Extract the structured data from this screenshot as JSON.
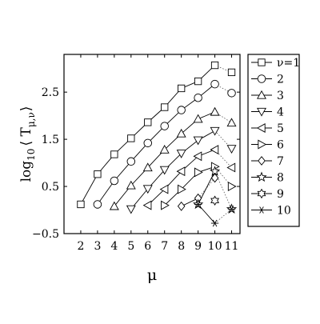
{
  "chart_data": {
    "type": "line",
    "title": "",
    "xlabel": "μ",
    "ylabel_main": "log",
    "ylabel_sub": "10",
    "ylabel_rest": "⟨ T",
    "ylabel_index": "μ,ν",
    "ylabel_close": "⟩",
    "xlim": [
      1,
      11.5
    ],
    "ylim": [
      -0.5,
      3.3
    ],
    "x_ticks": [
      2,
      3,
      4,
      5,
      6,
      7,
      8,
      9,
      10,
      11
    ],
    "x_tick_labels": [
      "2",
      "3",
      "4",
      "5",
      "6",
      "7",
      "8",
      "9",
      "10",
      "11"
    ],
    "y_ticks": [
      -0.5,
      0.5,
      1.5,
      2.5
    ],
    "y_tick_labels": [
      "−0.5",
      "0.5",
      "1.5",
      "2.5"
    ],
    "legend_position": "right",
    "series": [
      {
        "name": "ν=1",
        "marker": "square",
        "x": [
          2,
          3,
          4,
          5,
          6,
          7,
          8,
          9,
          10,
          11
        ],
        "y": [
          0.12,
          0.76,
          1.18,
          1.52,
          1.86,
          2.18,
          2.58,
          2.73,
          3.07,
          2.92
        ]
      },
      {
        "name": "2",
        "marker": "circle",
        "x": [
          3,
          4,
          5,
          6,
          7,
          8,
          9,
          10,
          11
        ],
        "y": [
          0.12,
          0.62,
          1.03,
          1.42,
          1.78,
          2.12,
          2.38,
          2.67,
          2.48
        ]
      },
      {
        "name": "3",
        "marker": "triangle-up",
        "x": [
          4,
          5,
          6,
          7,
          8,
          9,
          10,
          11
        ],
        "y": [
          0.08,
          0.52,
          0.9,
          1.28,
          1.62,
          1.93,
          2.08,
          1.85
        ]
      },
      {
        "name": "4",
        "marker": "triangle-down",
        "x": [
          5,
          6,
          7,
          8,
          9,
          10,
          11
        ],
        "y": [
          0.02,
          0.45,
          0.85,
          1.2,
          1.48,
          1.68,
          1.3
        ]
      },
      {
        "name": "5",
        "marker": "triangle-left",
        "x": [
          6,
          7,
          8,
          9,
          10,
          11
        ],
        "y": [
          0.1,
          0.44,
          0.82,
          1.14,
          1.28,
          0.9
        ]
      },
      {
        "name": "6",
        "marker": "triangle-right",
        "x": [
          7,
          8,
          9,
          10,
          11
        ],
        "y": [
          0.1,
          0.44,
          0.8,
          0.92,
          0.5
        ]
      },
      {
        "name": "7",
        "marker": "diamond",
        "x": [
          8,
          9,
          10
        ],
        "y": [
          0.08,
          0.25,
          0.68
        ]
      },
      {
        "name": "8",
        "marker": "pentagram",
        "x": [
          9,
          10,
          11
        ],
        "y": [
          0.12,
          0.82,
          0.02
        ]
      },
      {
        "name": "9",
        "marker": "hexagram",
        "x": [
          10
        ],
        "y": [
          0.2
        ]
      },
      {
        "name": "10",
        "marker": "asterisk",
        "x": [
          9,
          10,
          11
        ],
        "y": [
          0.12,
          -0.28,
          0.02
        ]
      }
    ]
  }
}
